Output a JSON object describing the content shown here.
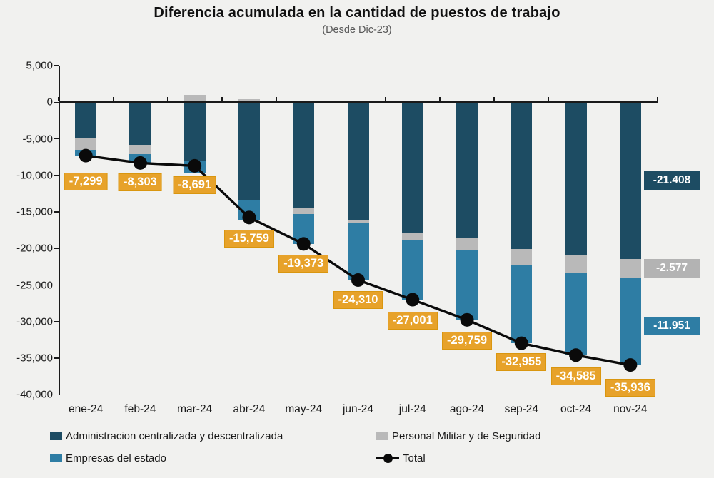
{
  "title": "Diferencia acumulada en la cantidad de puestos de trabajo",
  "subtitle": "(Desde Dic-23)",
  "chart_data": {
    "type": "bar",
    "variant": "stacked-bars-with-total-line",
    "categories": [
      "ene-24",
      "feb-24",
      "mar-24",
      "abr-24",
      "may-24",
      "jun-24",
      "jul-24",
      "ago-24",
      "sep-24",
      "oct-24",
      "nov-24"
    ],
    "series": [
      {
        "name": "Administracion centralizada y descentralizada",
        "color": "#1d4c63",
        "values": [
          -4870,
          -5790,
          -8030,
          -13480,
          -14550,
          -16070,
          -17800,
          -18570,
          -20060,
          -20840,
          -21408
        ]
      },
      {
        "name": "Personal Militar y de Seguridad",
        "color": "#b9b9b9",
        "values": [
          -1630,
          -1290,
          1030,
          430,
          -780,
          -490,
          -970,
          -1560,
          -2180,
          -2530,
          -2577
        ]
      },
      {
        "name": "Empresas del estado",
        "color": "#2e7da4",
        "values": [
          -799,
          -1223,
          -1691,
          -2709,
          -4043,
          -7750,
          -8231,
          -9629,
          -10715,
          -11215,
          -11951
        ]
      }
    ],
    "total": {
      "name": "Total",
      "color": "#0a0a0a",
      "values": [
        -7299,
        -8303,
        -8691,
        -15759,
        -19373,
        -24310,
        -27001,
        -29759,
        -32955,
        -34585,
        -35936
      ],
      "labels": [
        "-7,299",
        "-8,303",
        "-8,691",
        "-15,759",
        "-19,373",
        "-24,310",
        "-27,001",
        "-29,759",
        "-32,955",
        "-34,585",
        "-35,936"
      ],
      "label_color": "#e7a22a"
    },
    "right_callouts": [
      {
        "text": "-21.408",
        "series": "Administracion centralizada y descentralizada",
        "color": "#1d4c63"
      },
      {
        "text": "-2.577",
        "series": "Personal Militar y de Seguridad",
        "color": "#b3b3b3"
      },
      {
        "text": "-11.951",
        "series": "Empresas del estado",
        "color": "#2e7da4"
      }
    ],
    "y_axis": {
      "min": -40000,
      "max": 5000,
      "step": 5000,
      "tick_labels": [
        "5,000",
        "0",
        "-5,000",
        "-10,000",
        "-15,000",
        "-20,000",
        "-25,000",
        "-30,000",
        "-35,000",
        "-40,000"
      ]
    },
    "grid": false,
    "legend_position": "bottom"
  }
}
